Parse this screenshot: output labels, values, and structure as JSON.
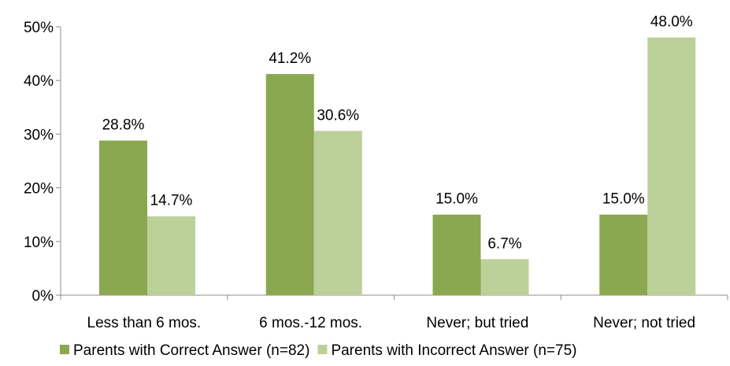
{
  "chart_data": {
    "type": "bar",
    "title": "",
    "xlabel": "",
    "ylabel": "",
    "categories": [
      "Less than 6 mos.",
      "6 mos.-12 mos.",
      "Never; but tried",
      "Never; not tried"
    ],
    "series": [
      {
        "name": "Parents with Correct Answer (n=82)",
        "color": "#8aa84f",
        "values": [
          28.8,
          41.2,
          15.0,
          15.0
        ],
        "labels": [
          "28.8%",
          "41.2%",
          "15.0%",
          "15.0%"
        ]
      },
      {
        "name": "Parents with Incorrect Answer (n=75)",
        "color": "#bcd09a",
        "values": [
          14.7,
          30.6,
          6.7,
          48.0
        ],
        "labels": [
          "14.7%",
          "30.6%",
          "6.7%",
          "48.0%"
        ]
      }
    ],
    "ylim": [
      0,
      50
    ],
    "yticks": [
      0,
      10,
      20,
      30,
      40,
      50
    ],
    "ytick_labels": [
      "0%",
      "10%",
      "20%",
      "30%",
      "40%",
      "50%"
    ],
    "grid": false,
    "legend_position": "bottom"
  }
}
